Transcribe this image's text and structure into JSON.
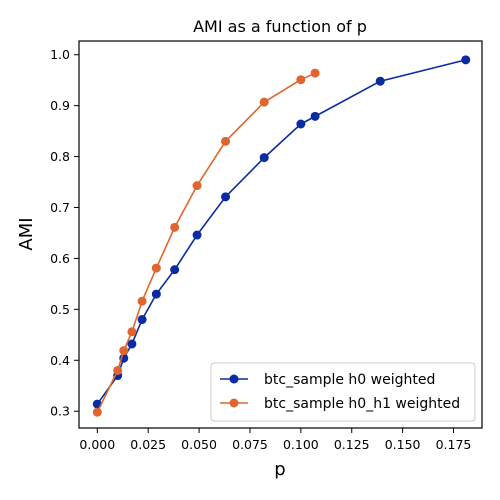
{
  "chart_data": {
    "type": "line",
    "title": "AMI as a function of p",
    "xlabel": "p",
    "ylabel": "AMI",
    "xlim": [
      -0.009,
      0.189
    ],
    "ylim": [
      0.267,
      1.027
    ],
    "x_ticks": [
      0.0,
      0.025,
      0.05,
      0.075,
      0.1,
      0.125,
      0.15,
      0.175
    ],
    "x_tick_labels": [
      "0.000",
      "0.025",
      "0.050",
      "0.075",
      "0.100",
      "0.125",
      "0.150",
      "0.175"
    ],
    "y_ticks": [
      0.3,
      0.4,
      0.5,
      0.6,
      0.7,
      0.8,
      0.9,
      1.0
    ],
    "y_tick_labels": [
      "0.3",
      "0.4",
      "0.5",
      "0.6",
      "0.7",
      "0.8",
      "0.9",
      "1.0"
    ],
    "grid": false,
    "legend_position": "bottom-right",
    "series": [
      {
        "name": "btc_sample h0 weighted",
        "color": "#0a2ca0",
        "x": [
          0.0,
          0.01,
          0.013,
          0.017,
          0.022,
          0.029,
          0.038,
          0.049,
          0.063,
          0.082,
          0.1,
          0.107,
          0.139,
          0.181
        ],
        "y": [
          0.314,
          0.37,
          0.404,
          0.432,
          0.48,
          0.53,
          0.578,
          0.646,
          0.721,
          0.798,
          0.864,
          0.879,
          0.948,
          0.99
        ]
      },
      {
        "name": "btc_sample h0_h1 weighted",
        "color": "#e0662f",
        "x": [
          0.0,
          0.01,
          0.013,
          0.017,
          0.022,
          0.029,
          0.038,
          0.049,
          0.063,
          0.082,
          0.1,
          0.107
        ],
        "y": [
          0.298,
          0.38,
          0.419,
          0.456,
          0.516,
          0.581,
          0.661,
          0.743,
          0.83,
          0.907,
          0.951,
          0.964
        ]
      }
    ]
  }
}
